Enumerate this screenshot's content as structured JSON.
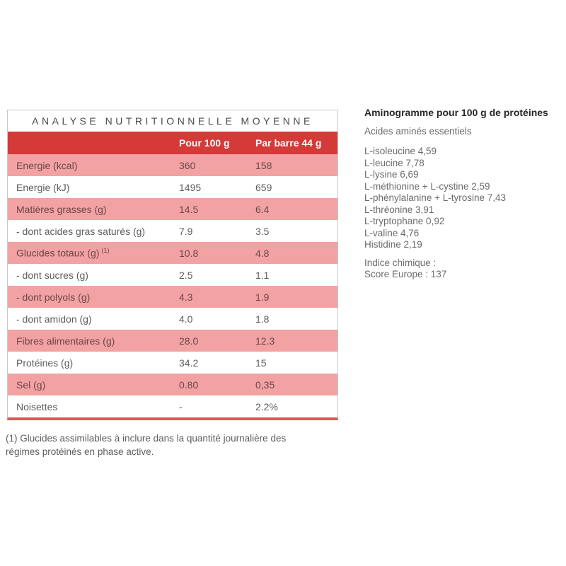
{
  "table": {
    "title": "ANALYSE NUTRITIONNELLE MOYENNE",
    "columns": {
      "per_100g": "Pour 100 g",
      "per_barre": "Par barre 44 g"
    },
    "rows": [
      {
        "label": "Energie (kcal)",
        "sup": "",
        "per_100g": "360",
        "per_barre": "158",
        "shaded": true
      },
      {
        "label": "Energie (kJ)",
        "sup": "",
        "per_100g": "1495",
        "per_barre": "659",
        "shaded": false
      },
      {
        "label": "Matières grasses (g)",
        "sup": "",
        "per_100g": "14.5",
        "per_barre": "6.4",
        "shaded": true
      },
      {
        "label": "- dont acides gras saturés (g)",
        "sup": "",
        "per_100g": "7.9",
        "per_barre": "3.5",
        "shaded": false
      },
      {
        "label": "Glucides totaux (g)",
        "sup": "(1)",
        "per_100g": "10.8",
        "per_barre": "4.8",
        "shaded": true
      },
      {
        "label": "- dont sucres (g)",
        "sup": "",
        "per_100g": "2.5",
        "per_barre": "1.1",
        "shaded": false
      },
      {
        "label": "- dont polyols (g)",
        "sup": "",
        "per_100g": "4.3",
        "per_barre": "1.9",
        "shaded": true
      },
      {
        "label": "- dont amidon (g)",
        "sup": "",
        "per_100g": "4.0",
        "per_barre": "1.8",
        "shaded": false
      },
      {
        "label": "Fibres alimentaires (g)",
        "sup": "",
        "per_100g": "28.0",
        "per_barre": "12.3",
        "shaded": true
      },
      {
        "label": "Protéines (g)",
        "sup": "",
        "per_100g": "34.2",
        "per_barre": "15",
        "shaded": false
      },
      {
        "label": "Sel (g)",
        "sup": "",
        "per_100g": "0.80",
        "per_barre": "0,35",
        "shaded": true
      },
      {
        "label": "Noisettes",
        "sup": "",
        "per_100g": "-",
        "per_barre": "2.2%",
        "shaded": false
      }
    ]
  },
  "aminogramme": {
    "title": "Aminogramme pour 100 g de protéines",
    "subtitle": "Acides aminés essentiels",
    "items": [
      "L-isoleucine 4,59",
      "L-leucine  7,78",
      "L-lysine 6,69",
      "L-méthionine + L-cystine 2,59",
      "L-phénylalanine + L-tyrosine  7,43",
      "L-thréonine  3,91",
      "L-tryptophane 0,92",
      "L-valine 4,76",
      "Histidine 2,19"
    ],
    "indice_lines": [
      "Indice chimique :",
      "Score Europe : 137"
    ]
  },
  "footnote": "(1) Glucides assimilables à inclure dans la quantité journalière des régimes protéinés en phase active.",
  "colors": {
    "header_red": "#d43a38",
    "row_pink": "#f2a2a3",
    "bottom_border_red": "#e15757"
  }
}
